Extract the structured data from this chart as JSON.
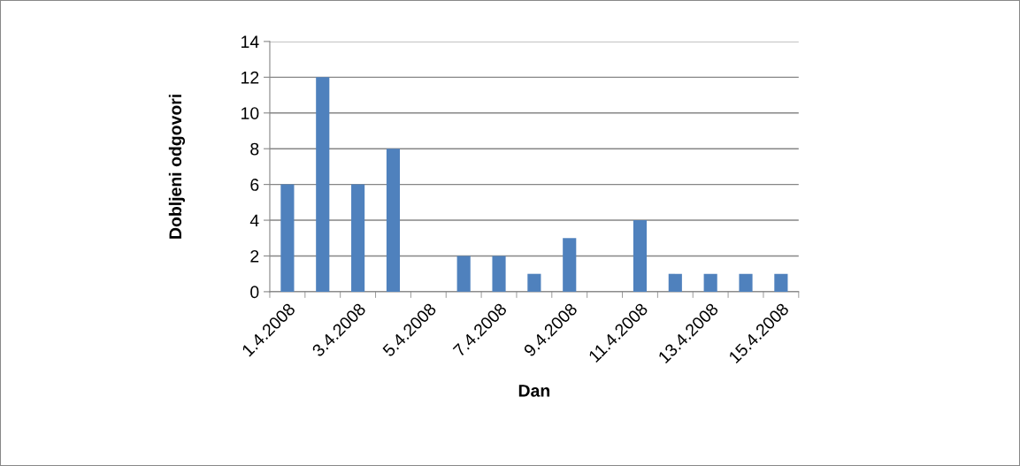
{
  "chart_data": {
    "type": "bar",
    "xlabel": "Dan",
    "ylabel": "Dobljeni odgovori",
    "categories": [
      "1.4.2008",
      null,
      "3.4.2008",
      null,
      "5.4.2008",
      null,
      "7.4.2008",
      null,
      "9.4.2008",
      null,
      "11.4.2008",
      null,
      "13.4.2008",
      null,
      "15.4.2008"
    ],
    "values": [
      6,
      12,
      6,
      8,
      0,
      2,
      2,
      1,
      3,
      0,
      4,
      1,
      1,
      1,
      1
    ],
    "color": "#4f81bd",
    "ylim": [
      0,
      14
    ],
    "yticks": [
      0,
      2,
      4,
      6,
      8,
      10,
      12,
      14
    ],
    "grid": "y",
    "legend": false
  }
}
